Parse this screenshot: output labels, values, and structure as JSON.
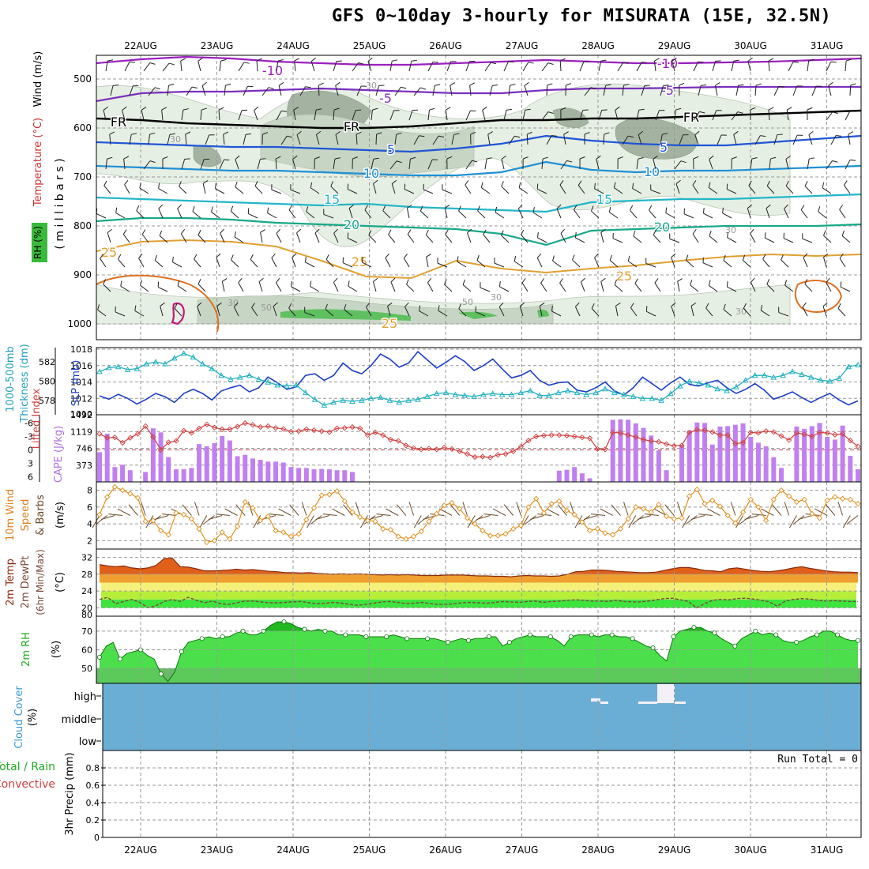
{
  "title": "GFS 0~10day 3-hourly for MISURATA (15E, 32.5N)",
  "dates": [
    "22AUG",
    "23AUG",
    "24AUG",
    "25AUG",
    "26AUG",
    "27AUG",
    "28AUG",
    "29AUG",
    "30AUG",
    "31AUG"
  ],
  "colors": {
    "rh_light": "#e6efe3",
    "rh_mid": "#c7d6c4",
    "rh_dark": "#a4b3a1",
    "rh_green": "#2ca02c",
    "iso_m10": "#9a1fbd",
    "iso_m5": "#7b2fbf",
    "iso_fr": "#000000",
    "iso_5": "#1f55d6",
    "iso_10": "#1e90d6",
    "iso_15": "#22b6c8",
    "iso_20": "#17a88a",
    "iso_25": "#e0a030",
    "iso_30": "#e07020",
    "cloud": "#6aaed6",
    "cape": "#c080f0",
    "lifted": "#d04040",
    "temp_fill": "#f0a030",
    "temp_hi": "#e0601a",
    "rh2m": "#22dd22",
    "rh2m_dark": "#229922"
  },
  "panels": {
    "upper": {
      "ylabel_wind": "Wind (m/s)",
      "ylabel_temp": "Temperature (°C)",
      "ylabel_rh": "RH (%)",
      "ylabel_mb": "( m i l l i b a r s )"
    },
    "slp": {
      "label1": "1000-500mb",
      "label2": "Thickness (dm)",
      "label3": "SLP (mb)"
    },
    "cape": {
      "label1": "Lifted Index",
      "label2": "CAPE (J/kg)"
    },
    "wind10": {
      "label1": "10m Wind",
      "label2": "Speed",
      "label3": "& Barbs",
      "label4": "(m/s)"
    },
    "temp2m": {
      "label1": "2m Temp",
      "label2": "2m DewPt",
      "label3": "(6hr Min/Max)",
      "label4": "(°C)"
    },
    "rh2m": {
      "label1": "2m RH",
      "label2": "(%)"
    },
    "cloud": {
      "label1": "Cloud Cover",
      "label2": "(%)",
      "high": "high",
      "middle": "middle",
      "low": "low"
    },
    "precip": {
      "label1": "Total / Rain",
      "label2": "Convective",
      "label3": "3hr Precip (mm)",
      "run_total": "Run Total = 0"
    }
  },
  "chart_data": [
    {
      "type": "line",
      "name": "upper-air",
      "y_ticks": [
        500,
        600,
        700,
        800,
        900,
        1000
      ],
      "isotherm_labels": [
        "-10",
        "-5",
        "FR",
        "5",
        "10",
        "15",
        "20",
        "25"
      ],
      "rh_labels": [
        "30",
        "50"
      ]
    },
    {
      "type": "line",
      "name": "slp-thickness",
      "slp_ticks": [
        1012,
        1014,
        1016,
        1018
      ],
      "thickness_ticks": [
        578,
        580,
        582
      ],
      "slp_mb": [
        1012.3,
        1011.9,
        1012.5,
        1012.0,
        1011.3,
        1011.9,
        1012.6,
        1012.2,
        1011.5,
        1012.6,
        1013.1,
        1012.6,
        1011.8,
        1012.9,
        1013.3,
        1013.6,
        1012.8,
        1013.3,
        1014.6,
        1013.9,
        1013.1,
        1013.4,
        1014.8,
        1015.0,
        1014.2,
        1014.8,
        1016.3,
        1015.4,
        1015.0,
        1016.0,
        1017.4,
        1016.8,
        1015.8,
        1016.3,
        1017.7,
        1016.7,
        1015.7,
        1016.4,
        1017.2,
        1016.5,
        1015.4,
        1016.0,
        1016.8,
        1015.6,
        1014.5,
        1014.8,
        1015.4,
        1014.2,
        1013.6,
        1013.9,
        1014.0,
        1013.0,
        1012.8,
        1013.3,
        1014.0,
        1012.9,
        1012.4,
        1013.3,
        1014.6,
        1013.8,
        1013.0,
        1013.9,
        1014.6,
        1013.7,
        1013.5,
        1013.9,
        1014.2,
        1013.3,
        1012.6,
        1013.1,
        1013.8,
        1013.0,
        1011.9,
        1012.3,
        1012.8,
        1012.1,
        1011.5,
        1012.1,
        1012.6,
        1011.8,
        1011.2,
        1011.7
      ],
      "thickness_dm": [
        581.0,
        581.4,
        581.5,
        581.2,
        581.3,
        581.8,
        582.0,
        581.8,
        582.4,
        582.9,
        582.5,
        581.8,
        581.3,
        580.6,
        580.2,
        580.4,
        580.6,
        580.2,
        579.9,
        579.6,
        579.5,
        579.6,
        578.8,
        578.1,
        577.5,
        577.8,
        578.0,
        577.9,
        578.0,
        578.2,
        578.3,
        578.0,
        577.8,
        578.0,
        578.1,
        578.4,
        578.7,
        578.8,
        578.6,
        578.5,
        578.4,
        578.6,
        578.7,
        578.6,
        578.6,
        578.8,
        579.0,
        578.5,
        578.5,
        578.8,
        579.0,
        578.8,
        578.6,
        578.8,
        579.2,
        578.8,
        578.6,
        578.4,
        578.2,
        578.2,
        578.0,
        578.7,
        579.5,
        580.0,
        579.8,
        579.6,
        579.2,
        579.0,
        579.4,
        580.1,
        580.6,
        580.6,
        580.4,
        580.6,
        581.0,
        580.7,
        580.4,
        580.1,
        580.0,
        580.3,
        581.5,
        581.7
      ]
    },
    {
      "type": "bar",
      "name": "cape-lifted",
      "cape_ticks": [
        373,
        746,
        1119,
        1492
      ],
      "li_ticks": [
        -6,
        -3,
        0,
        3,
        6
      ],
      "cape_jkg": [
        660,
        1070,
        330,
        380,
        260,
        0,
        220,
        1190,
        1100,
        550,
        280,
        280,
        310,
        840,
        790,
        860,
        1020,
        920,
        570,
        600,
        520,
        490,
        450,
        450,
        430,
        330,
        310,
        310,
        280,
        290,
        280,
        260,
        260,
        220,
        0,
        0,
        0,
        0,
        0,
        0,
        0,
        0,
        0,
        0,
        0,
        0,
        0,
        0,
        0,
        0,
        0,
        0,
        0,
        0,
        0,
        0,
        0,
        0,
        0,
        0,
        250,
        270,
        330,
        190,
        80,
        0,
        0,
        1380,
        1390,
        1380,
        1300,
        1200,
        1030,
        700,
        260,
        0,
        820,
        1140,
        1320,
        1310,
        830,
        1230,
        1240,
        1270,
        1300,
        1000,
        870,
        790,
        550,
        310,
        0,
        1230,
        1180,
        1240,
        1310,
        1000,
        940,
        1250,
        580,
        280
      ],
      "lifted_index": [
        -3.6,
        -2.7,
        -2.8,
        -1.6,
        -2.7,
        -3.6,
        -5.3,
        -2.9,
        0,
        -1.7,
        -2.0,
        -4.3,
        -3.8,
        -4.8,
        -5.7,
        -5.0,
        -4.6,
        -4.6,
        -5.2,
        -6.0,
        -5.6,
        -5.1,
        -5.3,
        -4.9,
        -4.7,
        -4.1,
        -4.2,
        -4.6,
        -4.4,
        -4.2,
        -4.0,
        -4.8,
        -4.9,
        -5.1,
        -4.8,
        -3.3,
        -3.9,
        -3.3,
        -2.3,
        -2.0,
        -1.0,
        -0.4,
        -0.1,
        -0.3,
        -0.1,
        -0.5,
        -0.2,
        0.3,
        0.9,
        1.6,
        1.5,
        1.7,
        1.1,
        0.9,
        0.3,
        -0.7,
        -2.1,
        -3.0,
        -3.2,
        -3.3,
        -3.3,
        -3.2,
        -3.0,
        -2.8,
        -2.6,
        -0.2,
        -0.1,
        -3.9,
        -3.8,
        -3.3,
        -2.9,
        -2.3,
        -2.0,
        -1.8,
        -1.3,
        -0.9,
        -1.0,
        -3.9,
        -4.5,
        -4.4,
        -4.0,
        -3.3,
        -3.3,
        -1.4,
        -1.6,
        -3.9,
        -3.8,
        -4.2,
        -4.0,
        -3.1,
        -2.2,
        -3.8,
        -3.5,
        -3.0,
        -3.9,
        -3.8,
        -3.4,
        -3.6,
        -2.1,
        -0.8
      ]
    },
    {
      "type": "line",
      "name": "wind-10m",
      "y_ticks": [
        2,
        4,
        6,
        8
      ],
      "speed_ms": [
        5.1,
        7.2,
        8.4,
        8.0,
        7.6,
        7.1,
        4.3,
        4.4,
        3.2,
        2.7,
        5.3,
        5.1,
        4.6,
        3.4,
        1.8,
        2.0,
        3.0,
        2.2,
        3.7,
        6.6,
        5.9,
        4.4,
        4.9,
        3.2,
        3.0,
        2.5,
        2.8,
        4.5,
        5.9,
        7.4,
        7.5,
        7.9,
        6.7,
        5.4,
        4.8,
        4.4,
        4.3,
        3.4,
        3.3,
        2.5,
        2.2,
        2.5,
        3.1,
        4.3,
        5.2,
        6.2,
        6.5,
        5.8,
        4.7,
        4.0,
        3.2,
        2.6,
        2.6,
        2.8,
        3.4,
        3.8,
        6.0,
        7.0,
        5.3,
        6.4,
        6.7,
        5.6,
        5.1,
        4.2,
        3.2,
        3.4,
        2.9,
        2.7,
        3.4,
        4.6,
        6.0,
        5.8,
        5.4,
        6.3,
        4.9,
        4.6,
        4.7,
        7.3,
        8.1,
        6.4,
        6.8,
        6.1,
        5.0,
        4.1,
        5.4,
        6.9,
        6.0,
        4.4,
        6.9,
        8.0,
        7.3,
        6.6,
        6.9,
        5.2,
        4.7,
        6.8,
        7.2,
        7.0,
        6.9,
        6.4
      ]
    },
    {
      "type": "area",
      "name": "temp-2m",
      "y_ticks": [
        20,
        24,
        28,
        32
      ],
      "temp_c": [
        30.3,
        30.0,
        29.8,
        30.0,
        29.5,
        29.3,
        29.5,
        30.1,
        31.7,
        31.9,
        29.8,
        29.7,
        29.3,
        28.8,
        28.8,
        28.9,
        29.0,
        29.2,
        29.0,
        29.1,
        28.9,
        28.7,
        28.6,
        28.4,
        28.4,
        28.3,
        28.4,
        28.2,
        28.1,
        28.0,
        28.1,
        28.0,
        28.1,
        28.0,
        27.9,
        27.8,
        27.9,
        27.8,
        27.9,
        27.8,
        27.7,
        27.7,
        27.7,
        27.8,
        27.8,
        27.8,
        27.7,
        27.6,
        27.6,
        27.5,
        27.5,
        27.4,
        27.6,
        27.7,
        27.6,
        27.6,
        27.5,
        27.6,
        28.0,
        28.6,
        28.7,
        29.0,
        29.0,
        28.9,
        28.7,
        28.6,
        28.5,
        28.4,
        28.4,
        28.5,
        28.9,
        29.3,
        29.6,
        29.6,
        29.3,
        28.9,
        28.8,
        28.6,
        29.3,
        29.5,
        29.2,
        28.9,
        28.7,
        28.6,
        28.8,
        29.1,
        29.5,
        29.8,
        29.4,
        29.1,
        28.8,
        28.6,
        28.5,
        28.5,
        28.4
      ],
      "dewpt_c": [
        22.0,
        22.5,
        21.0,
        21.5,
        22.0,
        21.3,
        20.0,
        20.5,
        21.5,
        22.0,
        21.5,
        22.5,
        21.8,
        21.2,
        21.6,
        21.0,
        20.8,
        21.2,
        21.6,
        21.6,
        21.4,
        21.2,
        21.2,
        21.3,
        21.4,
        21.5,
        21.2,
        21.0,
        21.1,
        21.3,
        21.1,
        20.8,
        20.6,
        20.8,
        21.1,
        21.4,
        21.5,
        21.3,
        21.0,
        21.1,
        21.3,
        21.0,
        20.8,
        20.8,
        21.0,
        21.2,
        21.3,
        21.2,
        21.1,
        21.3,
        21.5,
        21.4,
        21.3,
        21.5,
        21.6,
        21.3,
        21.5,
        21.6,
        21.8,
        21.9,
        21.8,
        21.6,
        21.6,
        21.5,
        21.8,
        21.5,
        21.4,
        21.4,
        21.6,
        21.9,
        22.2,
        22.3,
        21.9,
        21.5,
        20.0,
        21.0,
        21.8,
        22.0,
        21.9,
        22.2,
        22.3,
        22.1,
        21.8,
        21.4,
        20.4,
        21.6,
        22.0,
        22.2,
        22.1,
        21.8,
        21.6,
        21.7,
        21.6,
        21.5,
        21.5
      ]
    },
    {
      "type": "area",
      "name": "rh-2m",
      "y_ticks": [
        50,
        60,
        70
      ],
      "rh_pct": [
        56,
        62,
        64,
        55,
        58,
        59,
        60,
        57,
        55,
        47,
        43,
        48,
        59,
        64,
        65,
        66,
        67,
        66,
        67,
        67,
        69,
        70,
        68,
        68,
        70,
        73,
        75,
        75,
        74,
        72,
        71,
        70,
        71,
        70,
        70,
        68,
        68,
        68,
        68,
        67,
        67,
        67,
        67,
        68,
        67,
        66,
        66,
        66,
        66,
        66,
        65,
        64,
        65,
        66,
        65,
        66,
        66,
        67,
        67,
        62,
        64,
        66,
        67,
        68,
        67,
        67,
        67,
        65,
        62,
        67,
        68,
        68,
        68,
        67,
        68,
        68,
        67,
        67,
        66,
        64,
        62,
        61,
        57,
        54,
        67,
        70,
        71,
        72,
        72,
        70,
        69,
        66,
        64,
        62,
        66,
        68,
        70,
        68,
        69,
        68,
        65,
        64,
        64,
        65,
        67,
        68,
        70,
        70,
        68,
        66,
        65,
        65
      ]
    },
    {
      "type": "area",
      "name": "cloud-cover",
      "levels": [
        "high",
        "middle",
        "low"
      ]
    },
    {
      "type": "bar",
      "name": "precip-3hr",
      "y_ticks": [
        0,
        0.2,
        0.4,
        0.6,
        0.8
      ],
      "total_mm": [],
      "ylim": [
        0,
        1
      ]
    }
  ]
}
